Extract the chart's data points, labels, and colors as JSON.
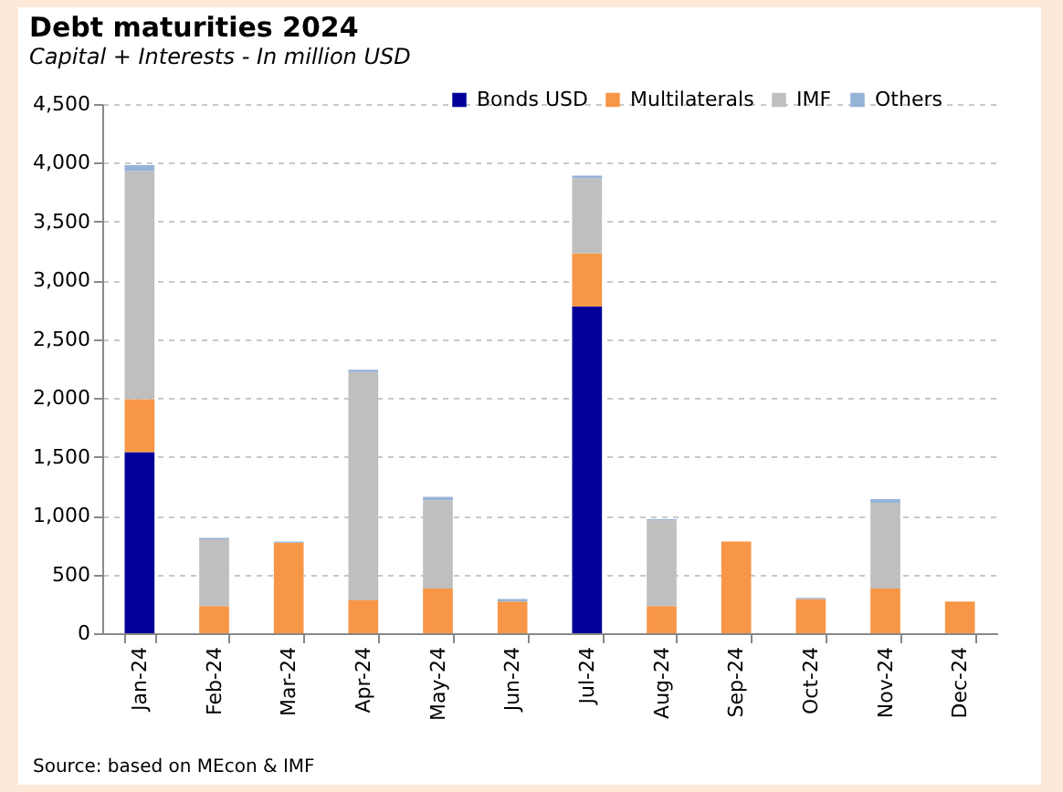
{
  "chart_data": {
    "type": "bar",
    "title": "Debt maturities 2024",
    "subtitle": "Capital + Interests - In million USD",
    "categories": [
      "Jan-24",
      "Feb-24",
      "Mar-24",
      "Apr-24",
      "May-24",
      "Jun-24",
      "Jul-24",
      "Aug-24",
      "Sep-24",
      "Oct-24",
      "Nov-24",
      "Dec-24"
    ],
    "stacked": true,
    "series": [
      {
        "name": "Bonds USD",
        "color": "#000099",
        "values": [
          1540,
          0,
          0,
          0,
          0,
          0,
          2780,
          0,
          0,
          0,
          0,
          0
        ]
      },
      {
        "name": "Multilaterals",
        "color": "#f79646",
        "values": [
          450,
          230,
          770,
          280,
          380,
          270,
          450,
          230,
          780,
          290,
          380,
          270
        ]
      },
      {
        "name": "IMF",
        "color": "#bfbfbf",
        "values": [
          1940,
          570,
          0,
          1940,
          750,
          0,
          640,
          730,
          0,
          0,
          730,
          0
        ]
      },
      {
        "name": "Others",
        "color": "#95b3d7",
        "values": [
          50,
          10,
          10,
          20,
          30,
          20,
          20,
          10,
          0,
          10,
          30,
          0
        ]
      }
    ],
    "ylim": [
      0,
      4500
    ],
    "yticks": [
      {
        "value": 0,
        "label": "0"
      },
      {
        "value": 500,
        "label": "500"
      },
      {
        "value": 1000,
        "label": "1,000"
      },
      {
        "value": 1500,
        "label": "1,500"
      },
      {
        "value": 2000,
        "label": "2,000"
      },
      {
        "value": 2500,
        "label": "2,500"
      },
      {
        "value": 3000,
        "label": "3,000"
      },
      {
        "value": 3500,
        "label": "3,500"
      },
      {
        "value": 4000,
        "label": "4,000"
      },
      {
        "value": 4500,
        "label": "4,500"
      }
    ],
    "grid": "y",
    "legend": "top right",
    "annotations": [
      "Source: based on MEcon & IMF"
    ]
  }
}
